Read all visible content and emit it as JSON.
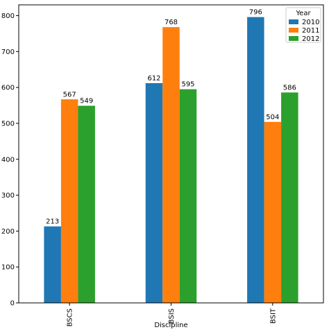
{
  "chart_data": {
    "type": "bar",
    "categories": [
      "BSCS",
      "BSIS",
      "BSIT"
    ],
    "series": [
      {
        "name": "2010",
        "values": [
          213,
          612,
          796
        ],
        "color": "#1f77b4"
      },
      {
        "name": "2011",
        "values": [
          567,
          768,
          504
        ],
        "color": "#ff7f0e"
      },
      {
        "name": "2012",
        "values": [
          549,
          595,
          586
        ],
        "color": "#2ca02c"
      }
    ],
    "xlabel": "Discipline",
    "ylabel": "",
    "ylim": [
      0,
      830
    ],
    "yticks": [
      0,
      100,
      200,
      300,
      400,
      500,
      600,
      700,
      800
    ],
    "legend": {
      "title": "Year",
      "placement": "top-right"
    },
    "grid": false
  }
}
